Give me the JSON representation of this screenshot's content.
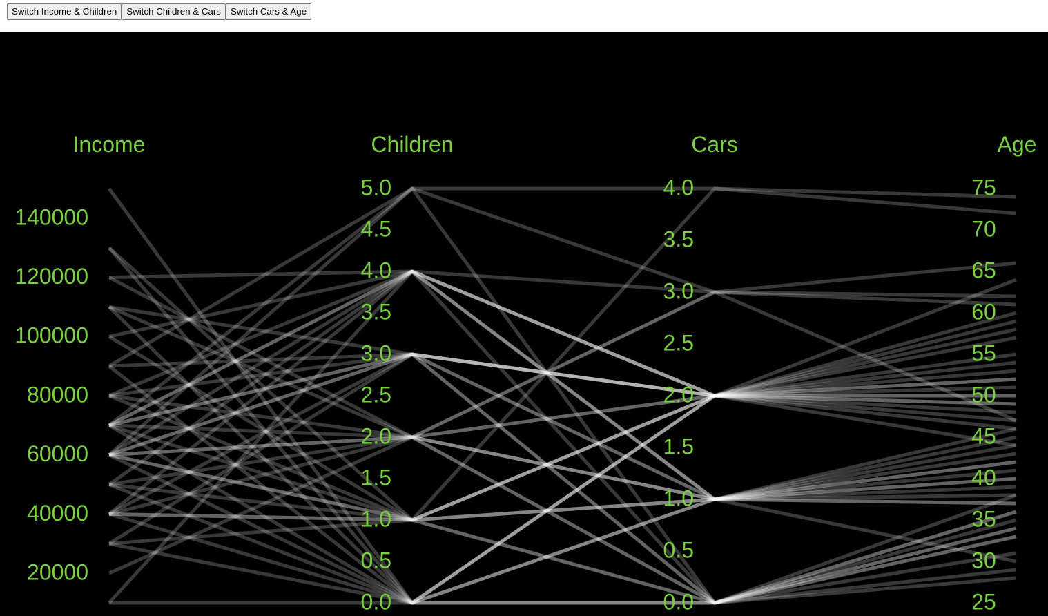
{
  "toolbar": {
    "switch_income_children": "Switch Income & Children",
    "switch_children_cars": "Switch Children & Cars",
    "switch_cars_age": "Switch Cars & Age"
  },
  "colors": {
    "background": "#000000",
    "label": "#79cf3f",
    "line": "#ffffff"
  },
  "chart_data": {
    "type": "parallel-coordinates",
    "title": "",
    "axes": [
      {
        "name": "Income",
        "range": [
          10000,
          150000
        ],
        "ticks": [
          "20000",
          "40000",
          "60000",
          "80000",
          "100000",
          "120000",
          "140000"
        ]
      },
      {
        "name": "Children",
        "range": [
          0,
          5
        ],
        "ticks": [
          "0.0",
          "0.5",
          "1.0",
          "1.5",
          "2.0",
          "2.5",
          "3.0",
          "3.5",
          "4.0",
          "4.5",
          "5.0"
        ]
      },
      {
        "name": "Cars",
        "range": [
          0,
          4
        ],
        "ticks": [
          "0.0",
          "0.5",
          "1.0",
          "1.5",
          "2.0",
          "2.5",
          "3.0",
          "3.5",
          "4.0"
        ]
      },
      {
        "name": "Age",
        "range": [
          25,
          75
        ],
        "ticks": [
          "25",
          "30",
          "35",
          "40",
          "45",
          "50",
          "55",
          "60",
          "65",
          "70",
          "75"
        ]
      }
    ],
    "records": [
      [
        150000,
        0,
        0,
        34
      ],
      [
        130000,
        1,
        1,
        30
      ],
      [
        130000,
        0,
        2,
        52
      ],
      [
        120000,
        4,
        3,
        61
      ],
      [
        120000,
        2,
        1,
        46
      ],
      [
        110000,
        3,
        2,
        55
      ],
      [
        110000,
        0,
        0,
        38
      ],
      [
        110000,
        2,
        2,
        49
      ],
      [
        100000,
        4,
        1,
        42
      ],
      [
        100000,
        1,
        2,
        57
      ],
      [
        90000,
        3,
        0,
        33
      ],
      [
        90000,
        5,
        3,
        47
      ],
      [
        90000,
        0,
        1,
        40
      ],
      [
        80000,
        4,
        2,
        51
      ],
      [
        80000,
        2,
        0,
        36
      ],
      [
        80000,
        3,
        1,
        44
      ],
      [
        80000,
        1,
        2,
        64
      ],
      [
        70000,
        5,
        4,
        72
      ],
      [
        70000,
        4,
        2,
        58
      ],
      [
        70000,
        3,
        2,
        50
      ],
      [
        70000,
        2,
        1,
        37
      ],
      [
        70000,
        1,
        0,
        29
      ],
      [
        70000,
        0,
        2,
        53
      ],
      [
        70000,
        4,
        1,
        45
      ],
      [
        70000,
        3,
        0,
        35
      ],
      [
        60000,
        4,
        2,
        48
      ],
      [
        60000,
        3,
        1,
        39
      ],
      [
        60000,
        2,
        2,
        54
      ],
      [
        60000,
        1,
        1,
        43
      ],
      [
        60000,
        0,
        2,
        46
      ],
      [
        60000,
        5,
        0,
        31
      ],
      [
        60000,
        1,
        2,
        60
      ],
      [
        60000,
        2,
        0,
        34
      ],
      [
        60000,
        3,
        2,
        49
      ],
      [
        50000,
        4,
        1,
        41
      ],
      [
        50000,
        2,
        3,
        66
      ],
      [
        50000,
        1,
        2,
        52
      ],
      [
        50000,
        0,
        0,
        28
      ],
      [
        40000,
        3,
        2,
        47
      ],
      [
        40000,
        1,
        1,
        38
      ],
      [
        40000,
        0,
        2,
        44
      ],
      [
        40000,
        4,
        0,
        33
      ],
      [
        40000,
        1,
        0,
        36
      ],
      [
        40000,
        2,
        1,
        42
      ],
      [
        30000,
        0,
        1,
        40
      ],
      [
        30000,
        3,
        2,
        59
      ],
      [
        30000,
        1,
        4,
        74
      ],
      [
        20000,
        2,
        3,
        62
      ],
      [
        10000,
        4,
        2,
        50
      ],
      [
        10000,
        0,
        1,
        37
      ]
    ]
  }
}
